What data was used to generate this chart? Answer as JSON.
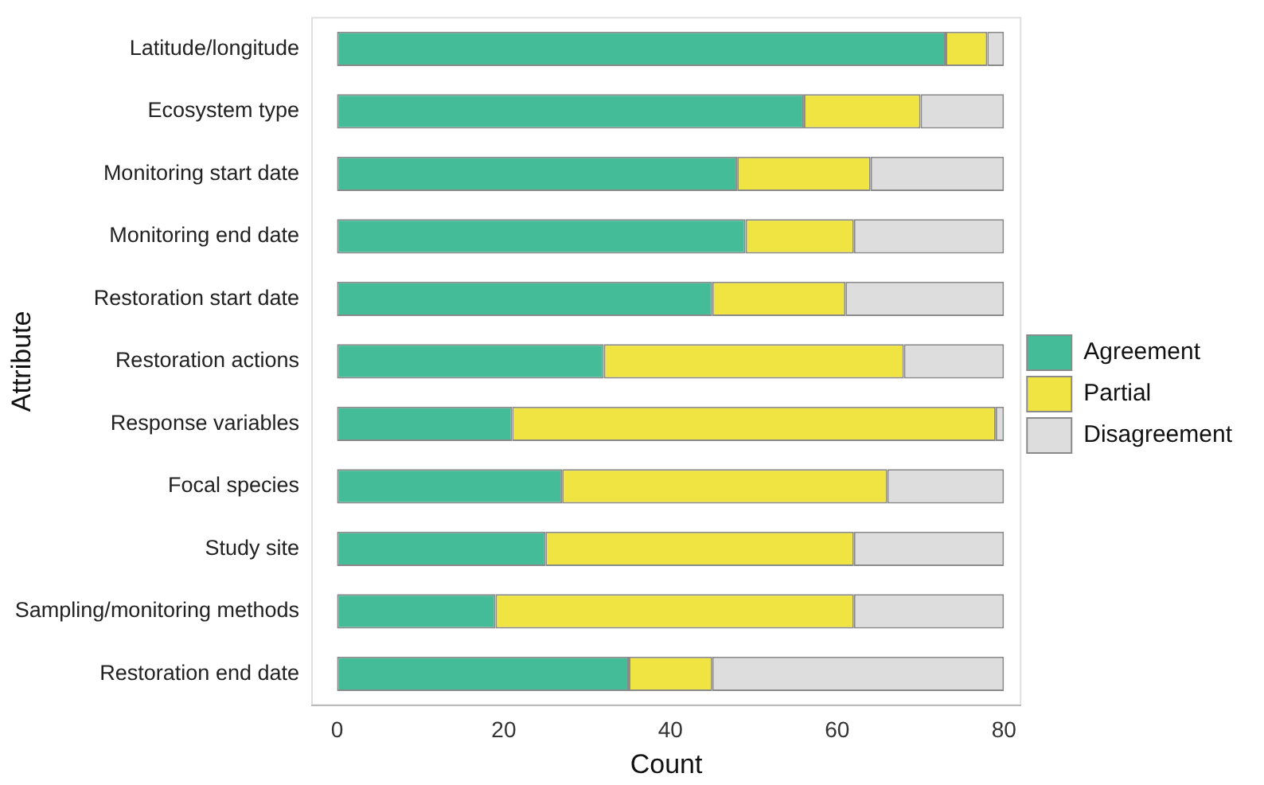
{
  "chart_data": {
    "type": "bar",
    "orientation": "horizontal",
    "stacked": true,
    "xlabel": "Count",
    "ylabel": "Attribute",
    "categories": [
      "Latitude/longitude",
      "Ecosystem type",
      "Monitoring start date",
      "Monitoring end date",
      "Restoration start date",
      "Restoration actions",
      "Response variables",
      "Focal species",
      "Study site",
      "Sampling/monitoring methods",
      "Restoration end date"
    ],
    "series": [
      {
        "name": "Agreement",
        "color": "#44bc98",
        "values": [
          73,
          56,
          48,
          49,
          45,
          32,
          21,
          27,
          25,
          19,
          35
        ]
      },
      {
        "name": "Partial",
        "color": "#f0e442",
        "values": [
          5,
          14,
          16,
          13,
          16,
          36,
          58,
          39,
          37,
          43,
          10
        ]
      },
      {
        "name": "Disagreement",
        "color": "#dddddd",
        "values": [
          2,
          10,
          16,
          18,
          19,
          12,
          1,
          14,
          18,
          18,
          35
        ]
      }
    ],
    "xlim": [
      -3,
      82
    ],
    "xticks": [
      0,
      20,
      40,
      60,
      80
    ],
    "grid": false,
    "legend": "right"
  }
}
